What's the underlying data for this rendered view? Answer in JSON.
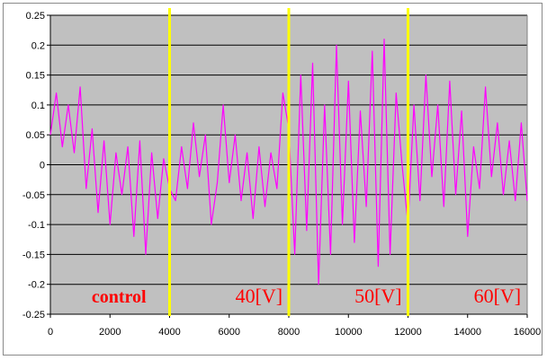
{
  "chart_data": {
    "type": "line",
    "title": "",
    "xlabel": "",
    "ylabel": "",
    "xlim": [
      0,
      16000
    ],
    "ylim": [
      -0.25,
      0.25
    ],
    "x_ticks": [
      0,
      2000,
      4000,
      6000,
      8000,
      10000,
      12000,
      14000,
      16000
    ],
    "y_ticks": [
      0.25,
      0.2,
      0.15,
      0.1,
      0.05,
      0,
      -0.05,
      -0.1,
      -0.15,
      -0.2,
      -0.25
    ],
    "x_tick_labels": [
      "0",
      "2000",
      "4000",
      "6000",
      "8000",
      "10000",
      "12000",
      "14000",
      "16000"
    ],
    "y_tick_labels": [
      "0.25",
      "0.2",
      "0.15",
      "0.1",
      "0.05",
      "0",
      "-0.05",
      "-0.1",
      "-0.15",
      "-0.2",
      "-0.25"
    ],
    "grid": true,
    "plot_background": "#c0c0c0",
    "series": [
      {
        "color": "#ff00ff",
        "x": [
          0,
          200,
          400,
          600,
          800,
          1000,
          1200,
          1400,
          1600,
          1800,
          2000,
          2200,
          2400,
          2600,
          2800,
          3000,
          3200,
          3400,
          3600,
          3800,
          4000,
          4200,
          4400,
          4600,
          4800,
          5000,
          5200,
          5400,
          5600,
          5800,
          6000,
          6200,
          6400,
          6600,
          6800,
          7000,
          7200,
          7400,
          7600,
          7800,
          8000,
          8200,
          8400,
          8600,
          8800,
          9000,
          9200,
          9400,
          9600,
          9800,
          10000,
          10200,
          10400,
          10600,
          10800,
          11000,
          11200,
          11400,
          11600,
          11800,
          12000,
          12200,
          12400,
          12600,
          12800,
          13000,
          13200,
          13400,
          13600,
          13800,
          14000,
          14200,
          14400,
          14600,
          14800,
          15000,
          15200,
          15400,
          15600,
          15800,
          16000
        ],
        "y": [
          0.05,
          0.12,
          0.03,
          0.1,
          0.02,
          0.13,
          -0.04,
          0.06,
          -0.08,
          0.04,
          -0.1,
          0.02,
          -0.05,
          0.03,
          -0.12,
          0.04,
          -0.15,
          0.02,
          -0.09,
          0.01,
          -0.04,
          -0.06,
          0.03,
          -0.04,
          0.07,
          -0.02,
          0.05,
          -0.1,
          -0.03,
          0.1,
          -0.03,
          0.05,
          -0.06,
          0.02,
          -0.09,
          0.03,
          -0.07,
          0.02,
          -0.04,
          0.12,
          0.06,
          -0.15,
          0.15,
          -0.11,
          0.17,
          -0.2,
          0.1,
          -0.15,
          0.2,
          -0.1,
          0.14,
          -0.13,
          0.09,
          -0.07,
          0.19,
          -0.17,
          0.21,
          -0.15,
          0.12,
          0.0,
          -0.1,
          0.1,
          -0.06,
          0.15,
          -0.02,
          0.1,
          -0.07,
          0.14,
          -0.05,
          0.09,
          -0.12,
          0.03,
          -0.04,
          0.13,
          -0.02,
          0.07,
          -0.05,
          0.04,
          -0.06,
          0.07,
          -0.06
        ]
      }
    ],
    "vertical_markers": [
      {
        "x": 4000,
        "color": "#ffff00"
      },
      {
        "x": 8000,
        "color": "#ffff00"
      },
      {
        "x": 12000,
        "color": "#ffff00"
      }
    ],
    "annotations": [
      {
        "text": "control",
        "x": 2300,
        "y": -0.22
      },
      {
        "text": "40[V]",
        "x": 7000,
        "y": -0.22
      },
      {
        "text": "50[V]",
        "x": 11000,
        "y": -0.22
      },
      {
        "text": "60[V]",
        "x": 15000,
        "y": -0.22
      }
    ],
    "annotation_color": "#ff0000"
  }
}
